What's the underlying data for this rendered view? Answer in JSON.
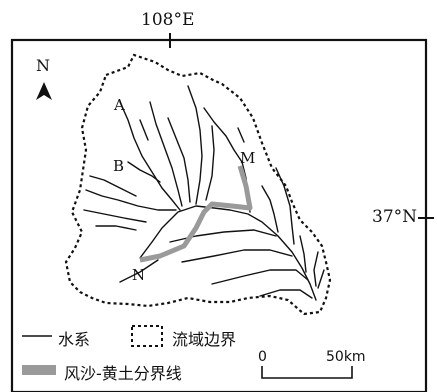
{
  "coords": {
    "longitude": "108°E",
    "latitude": "37°N"
  },
  "north": {
    "label": "N"
  },
  "points": {
    "A": "A",
    "B": "B",
    "M": "M",
    "N": "N"
  },
  "legend": {
    "river": "水系",
    "boundary": "流域边界",
    "sand_loess": "风沙-黄土分界线"
  },
  "scale": {
    "start": "0",
    "end": "50km"
  },
  "colors": {
    "river": "#111111",
    "boundary": "#111111",
    "sand_loess_line": "#9a9a9a",
    "frame": "#111111"
  }
}
